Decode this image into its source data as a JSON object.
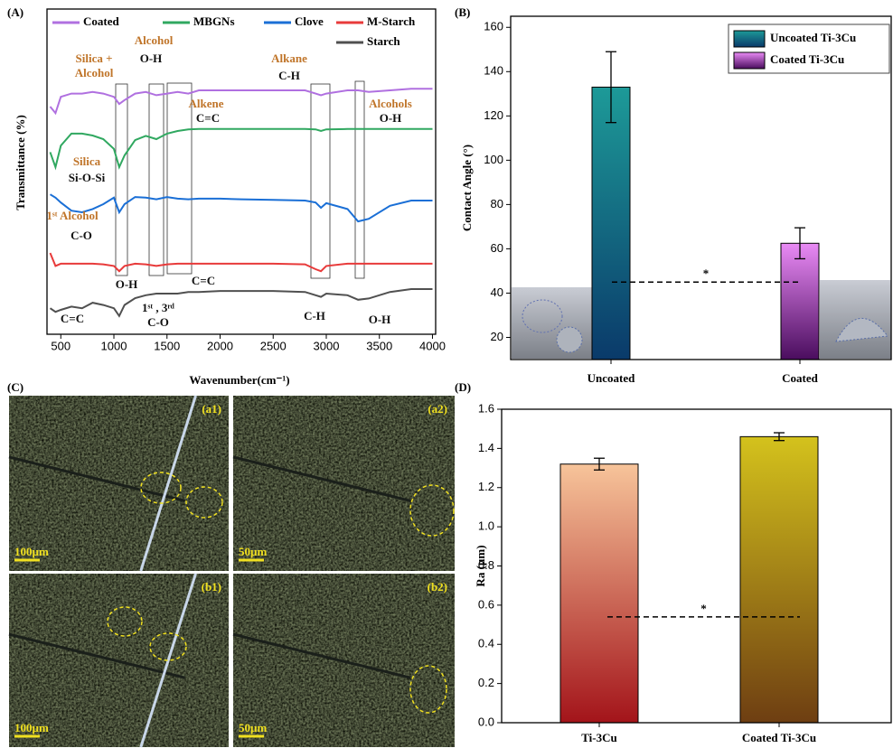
{
  "chart_data": [
    {
      "type": "line",
      "panel": "(A)",
      "xlabel": "Wavenumber(cm⁻¹)",
      "ylabel": "Transmittance (%)",
      "xlim": [
        370,
        4030
      ],
      "ylim": [
        0,
        100
      ],
      "xticks": [
        500,
        1000,
        1500,
        2000,
        2500,
        3000,
        3500,
        4000
      ],
      "x": [
        400,
        450,
        500,
        600,
        700,
        800,
        900,
        1000,
        1050,
        1100,
        1200,
        1300,
        1400,
        1500,
        1600,
        1700,
        1800,
        2000,
        2200,
        2500,
        2800,
        2900,
        2950,
        3000,
        3200,
        3300,
        3400,
        3600,
        3800,
        4000
      ],
      "series": [
        {
          "name": "Coated",
          "color": "#b070e0",
          "values": [
            70,
            68,
            73,
            74,
            74,
            74.5,
            74,
            73,
            70.8,
            72,
            74,
            74.5,
            73.5,
            74,
            74.5,
            74,
            75,
            75,
            75,
            75,
            75,
            74,
            73.5,
            74,
            75,
            75,
            74.5,
            75,
            75.5,
            75.5
          ]
        },
        {
          "name": "MBGNs",
          "color": "#30a860",
          "values": [
            56,
            51.4,
            58,
            61.7,
            61.7,
            61.1,
            60,
            57,
            51.4,
            55,
            59.7,
            61,
            60,
            61.7,
            62.5,
            63,
            63.1,
            63.1,
            63.1,
            63.1,
            63.1,
            63,
            62.5,
            63,
            63.1,
            63.1,
            63.1,
            63.1,
            63.1,
            63.1
          ]
        },
        {
          "name": "Clove",
          "color": "#1a6fd6",
          "values": [
            43,
            42,
            40.5,
            38,
            37.5,
            38.5,
            40,
            42,
            37.5,
            40,
            42.2,
            42,
            41.5,
            42.2,
            41.7,
            41.5,
            41.7,
            41.7,
            41.5,
            41.3,
            41.1,
            40.5,
            38.9,
            40.3,
            38.5,
            34.7,
            35.5,
            39.5,
            41.1,
            41.1
          ]
        },
        {
          "name": "M-Starch",
          "color": "#e83a3a",
          "values": [
            25,
            21,
            21.7,
            21.7,
            21.7,
            21.7,
            21.5,
            21,
            19.4,
            21,
            21.7,
            21.5,
            21,
            21.5,
            21.7,
            21.7,
            21.7,
            21.7,
            21.7,
            21.7,
            21.5,
            20,
            19.4,
            21,
            21.7,
            21.7,
            21.7,
            21.7,
            21.7,
            21.7
          ]
        },
        {
          "name": "Starch",
          "color": "#505050",
          "values": [
            8,
            6.9,
            7.5,
            8.5,
            8,
            9.7,
            9,
            8,
            5.6,
            9,
            11.1,
            12,
            12.5,
            12.5,
            12.5,
            13,
            13,
            13.3,
            13.3,
            13.3,
            13,
            12,
            11.5,
            12.5,
            12,
            10.6,
            11,
            13,
            13.9,
            13.9
          ]
        }
      ],
      "annotations": [
        "Silica +",
        "Alcohol",
        "Alcohol",
        "O-H",
        "Alkene",
        "C=C",
        "Alkane",
        "C-H",
        "Alcohols",
        "O-H",
        "Silica",
        "Si-O-Si",
        "1ˢᵗ Alcohol",
        "C-O",
        "O-H",
        "C=C",
        "1ˢᵗ , 3ʳᵈ",
        "C-O",
        "C=C",
        "C-H",
        "O-H"
      ]
    },
    {
      "type": "bar",
      "panel": "(B)",
      "ylabel": "Contact Angle (°)",
      "categories": [
        "Uncoated",
        "Coated"
      ],
      "values": [
        133,
        62.5
      ],
      "errors": [
        16,
        7
      ],
      "colors": [
        {
          "top": "#1d9a98",
          "bottom": "#0a3a6a"
        },
        {
          "top": "#e98af5",
          "bottom": "#4a0d5e"
        }
      ],
      "legend": [
        "Uncoated Ti-3Cu",
        "Coated Ti-3Cu"
      ],
      "ylim": [
        10,
        165
      ],
      "yticks": [
        20,
        40,
        60,
        80,
        100,
        120,
        140,
        160
      ],
      "significance": {
        "label": "*",
        "value": 45
      }
    },
    {
      "type": "bar",
      "panel": "(D)",
      "ylabel": "Ra (µm)",
      "categories": [
        "Ti-3Cu",
        "Coated Ti-3Cu"
      ],
      "values": [
        1.32,
        1.46
      ],
      "errors": [
        0.03,
        0.02
      ],
      "colors": [
        {
          "top": "#f7c49a",
          "bottom": "#a3141a"
        },
        {
          "top": "#d4c21c",
          "bottom": "#6e3e12"
        }
      ],
      "ylim": [
        0,
        1.6
      ],
      "yticks": [
        {
          "value": 0,
          "label": "0.0"
        },
        0.2,
        0.4,
        0.6,
        0.8,
        {
          "value": 1,
          "label": "1.0"
        },
        1.2,
        1.4,
        1.6
      ],
      "significance": {
        "label": "*",
        "value": 0.54
      }
    }
  ],
  "micrographs": {
    "panel": "(C)",
    "images": [
      {
        "label": "(a1)",
        "scale_bar": "100µm"
      },
      {
        "label": "(a2)",
        "scale_bar": "50µm"
      },
      {
        "label": "(b1)",
        "scale_bar": "100µm"
      },
      {
        "label": "(b2)",
        "scale_bar": "50µm"
      }
    ]
  }
}
